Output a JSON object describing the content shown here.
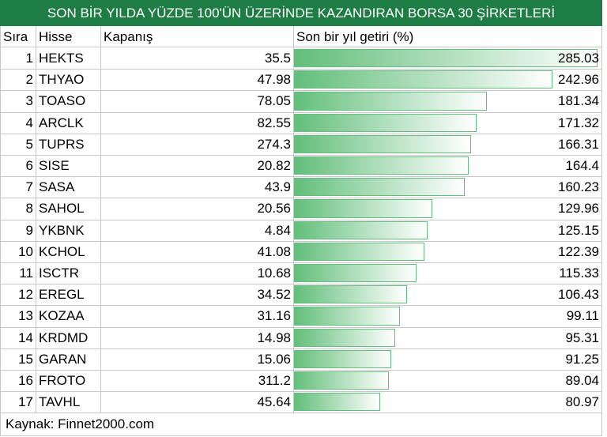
{
  "header": {
    "title": "SON BİR YILDA YÜZDE 100'ÜN ÜZERİNDE KAZANDIRAN BORSA 30 ŞİRKETLERİ"
  },
  "table": {
    "columns": [
      "Sıra",
      "Hisse",
      "Kapanış",
      "Son bir yıl getiri (%)"
    ],
    "rows": [
      [
        1,
        "HEKTS",
        35.5,
        285.03
      ],
      [
        2,
        "THYAO",
        47.98,
        242.96
      ],
      [
        3,
        "TOASO",
        78.05,
        181.34
      ],
      [
        4,
        "ARCLK",
        82.55,
        171.32
      ],
      [
        5,
        "TUPRS",
        274.3,
        166.31
      ],
      [
        6,
        "SISE",
        20.82,
        164.4
      ],
      [
        7,
        "SASA",
        43.9,
        160.23
      ],
      [
        8,
        "SAHOL",
        20.56,
        129.96
      ],
      [
        9,
        "YKBNK",
        4.84,
        125.15
      ],
      [
        10,
        "KCHOL",
        41.08,
        122.39
      ],
      [
        11,
        "ISCTR",
        10.68,
        115.33
      ],
      [
        12,
        "EREGL",
        34.52,
        106.43
      ],
      [
        13,
        "KOZAA",
        31.16,
        99.11
      ],
      [
        14,
        "KRDMD",
        14.98,
        95.31
      ],
      [
        15,
        "GARAN",
        15.06,
        91.25
      ],
      [
        16,
        "FROTO",
        311.2,
        89.04
      ],
      [
        17,
        "TAVHL",
        45.64,
        80.97
      ]
    ]
  },
  "footer": {
    "source": "Kaynak: Finnet2000.com"
  }
}
